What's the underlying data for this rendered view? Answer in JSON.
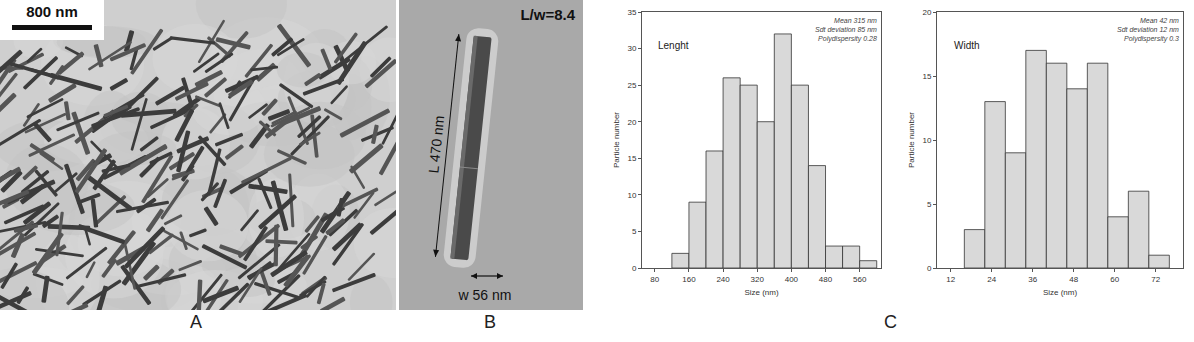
{
  "chart_data": [
    {
      "type": "histogram",
      "title": "Lenght",
      "annotations": [
        "Mean 315 nm",
        "Sdt deviation 85 nm",
        "Polydispersity 0.28"
      ],
      "x_label": "Size (nm)",
      "y_label": "Particle number",
      "bins": [
        120,
        160,
        200,
        240,
        280,
        320,
        360,
        400,
        440,
        480,
        520,
        560,
        600
      ],
      "values": [
        2,
        9,
        16,
        26,
        25,
        20,
        32,
        25,
        14,
        3,
        3,
        1
      ],
      "color": "#d9d9d9",
      "xlim": [
        50,
        610
      ],
      "xticks": [
        80,
        160,
        240,
        320,
        400,
        480,
        560
      ],
      "ylim": [
        0,
        35
      ],
      "yticks": [
        0,
        5,
        10,
        15,
        20,
        25,
        30,
        35
      ],
      "grid": false
    },
    {
      "type": "histogram",
      "title": "Width",
      "annotations": [
        "Mean 42 nm",
        "Sdt deviation 12 nm",
        "Polydispersity 0.3"
      ],
      "x_label": "Size (nm)",
      "y_label": "Particle number",
      "bins": [
        16,
        22,
        28,
        34,
        40,
        46,
        52,
        58,
        64,
        70,
        76
      ],
      "values": [
        3,
        13,
        9,
        17,
        16,
        14,
        16,
        4,
        6,
        1
      ],
      "color": "#d9d9d9",
      "xlim": [
        8,
        80
      ],
      "xticks": [
        12,
        24,
        36,
        48,
        60,
        72
      ],
      "ylim": [
        0,
        20
      ],
      "yticks": [
        0,
        5,
        10,
        15,
        20
      ],
      "grid": false
    }
  ],
  "panels": {
    "A": {
      "label": "A",
      "scale_bar": "800 nm"
    },
    "B": {
      "label": "B",
      "ratio": "L/w=8.4",
      "length": "L 470 nm",
      "width": "w 56 nm"
    },
    "C": {
      "label": "C"
    }
  }
}
